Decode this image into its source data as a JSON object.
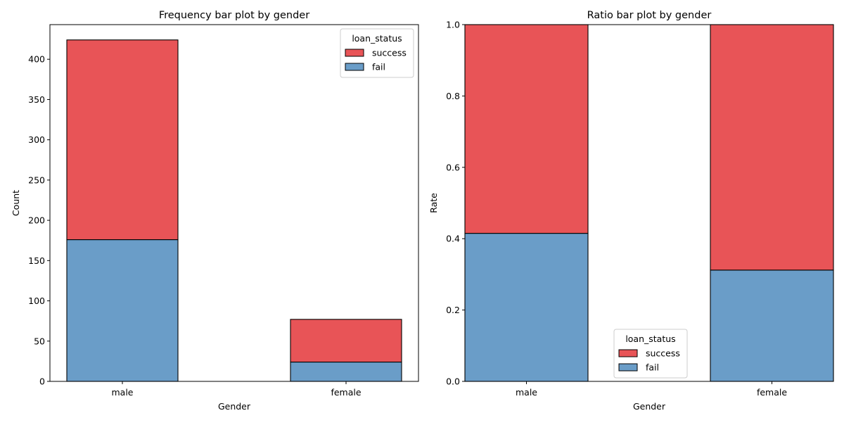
{
  "chart_data": [
    {
      "type": "bar",
      "stacked": true,
      "title": "Frequency bar plot by gender",
      "xlabel": "Gender",
      "ylabel": "Count",
      "categories": [
        "male",
        "female"
      ],
      "ylim": [
        0,
        443
      ],
      "yticks": [
        0,
        50,
        100,
        150,
        200,
        250,
        300,
        350,
        400
      ],
      "series": [
        {
          "name": "fail",
          "values": [
            176,
            24
          ],
          "color": "#6a9dc8"
        },
        {
          "name": "success",
          "values": [
            248,
            53
          ],
          "color": "#e85457"
        }
      ],
      "legend": {
        "title": "loan_status",
        "entries": [
          "success",
          "fail"
        ],
        "position": "top-right"
      },
      "grid": false
    },
    {
      "type": "bar",
      "stacked": true,
      "title": "Ratio bar plot by gender",
      "xlabel": "Gender",
      "ylabel": "Rate",
      "categories": [
        "male",
        "female"
      ],
      "ylim": [
        0,
        1.0
      ],
      "yticks": [
        0.0,
        0.2,
        0.4,
        0.6,
        0.8,
        1.0
      ],
      "ytick_labels": [
        "0.0",
        "0.2",
        "0.4",
        "0.6",
        "0.8",
        "1.0"
      ],
      "series": [
        {
          "name": "fail",
          "values": [
            0.415,
            0.312
          ],
          "color": "#6a9dc8"
        },
        {
          "name": "success",
          "values": [
            0.585,
            0.688
          ],
          "color": "#e85457"
        }
      ],
      "legend": {
        "title": "loan_status",
        "entries": [
          "success",
          "fail"
        ],
        "position": "bottom-center"
      },
      "grid": false
    }
  ]
}
